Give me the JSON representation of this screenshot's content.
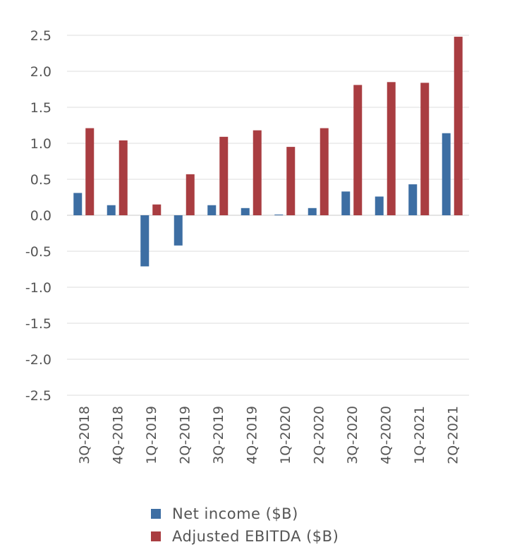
{
  "chart_data": {
    "type": "bar",
    "categories": [
      "3Q-2018",
      "4Q-2018",
      "1Q-2019",
      "2Q-2019",
      "3Q-2019",
      "4Q-2019",
      "1Q-2020",
      "2Q-2020",
      "3Q-2020",
      "4Q-2020",
      "1Q-2021",
      "2Q-2021"
    ],
    "series": [
      {
        "name": "Net income ($B)",
        "color": "#3d6ea3",
        "values": [
          0.31,
          0.14,
          -0.71,
          -0.42,
          0.14,
          0.1,
          0.01,
          0.1,
          0.33,
          0.26,
          0.43,
          1.14
        ]
      },
      {
        "name": "Adjusted EBITDA ($B)",
        "color": "#a93d41",
        "values": [
          1.21,
          1.04,
          0.15,
          0.57,
          1.09,
          1.18,
          0.95,
          1.21,
          1.81,
          1.85,
          1.84,
          2.48
        ]
      }
    ],
    "ylim": [
      -2.5,
      2.5
    ],
    "yticks": [
      "2.5",
      "2.0",
      "1.5",
      "1.0",
      "0.5",
      "0.0",
      "-0.5",
      "-1.0",
      "-1.5",
      "-2.0",
      "-2.5"
    ],
    "grid": true,
    "legend_position": "bottom"
  }
}
